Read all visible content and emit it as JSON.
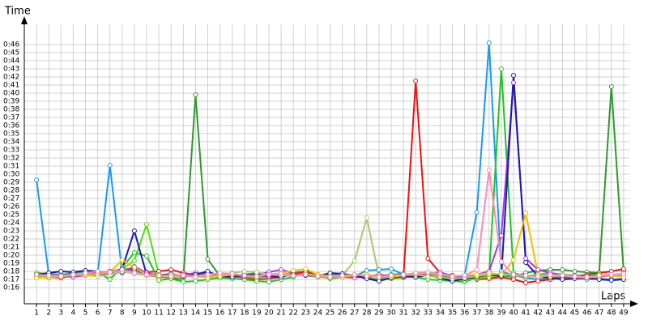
{
  "chart_data": {
    "type": "line",
    "y_label": "Time",
    "x_label": "Laps",
    "grid": true,
    "x": [
      1,
      2,
      3,
      4,
      5,
      6,
      7,
      8,
      9,
      10,
      11,
      12,
      13,
      14,
      15,
      16,
      17,
      18,
      19,
      20,
      21,
      22,
      23,
      24,
      25,
      26,
      27,
      28,
      29,
      30,
      31,
      32,
      33,
      34,
      35,
      36,
      37,
      38,
      39,
      40,
      41,
      42,
      43,
      44,
      45,
      46,
      47,
      48,
      49
    ],
    "xlim": [
      0,
      50
    ],
    "xticks": [
      1,
      2,
      3,
      4,
      5,
      6,
      7,
      8,
      9,
      10,
      11,
      12,
      13,
      14,
      15,
      16,
      17,
      18,
      19,
      20,
      21,
      22,
      23,
      24,
      25,
      26,
      27,
      28,
      29,
      30,
      31,
      32,
      33,
      34,
      35,
      36,
      37,
      38,
      39,
      40,
      41,
      42,
      43,
      44,
      45,
      46,
      47,
      48,
      49
    ],
    "ylim": [
      14,
      48.5
    ],
    "yticks": [
      {
        "value": 16,
        "label": "0:16"
      },
      {
        "value": 17,
        "label": "0:17"
      },
      {
        "value": 18,
        "label": "0:18"
      },
      {
        "value": 19,
        "label": "0:19"
      },
      {
        "value": 20,
        "label": "0:20"
      },
      {
        "value": 21,
        "label": "0:21"
      },
      {
        "value": 22,
        "label": "0:22"
      },
      {
        "value": 23,
        "label": "0:23"
      },
      {
        "value": 24,
        "label": "0:24"
      },
      {
        "value": 25,
        "label": "0:25"
      },
      {
        "value": 26,
        "label": "0:26"
      },
      {
        "value": 27,
        "label": "0:27"
      },
      {
        "value": 28,
        "label": "0:28"
      },
      {
        "value": 29,
        "label": "0:29"
      },
      {
        "value": 30,
        "label": "0:30"
      },
      {
        "value": 31,
        "label": "0:31"
      },
      {
        "value": 32,
        "label": "0:32"
      },
      {
        "value": 33,
        "label": "0:33"
      },
      {
        "value": 34,
        "label": "0:34"
      },
      {
        "value": 35,
        "label": "0:35"
      },
      {
        "value": 36,
        "label": "0:36"
      },
      {
        "value": 37,
        "label": "0:37"
      },
      {
        "value": 38,
        "label": "0:38"
      },
      {
        "value": 39,
        "label": "0:39"
      },
      {
        "value": 40,
        "label": "0:40"
      },
      {
        "value": 41,
        "label": "0:41"
      },
      {
        "value": 42,
        "label": "0:42"
      },
      {
        "value": 43,
        "label": "0:43"
      },
      {
        "value": 44,
        "label": "0:44"
      },
      {
        "value": 45,
        "label": "0:45"
      },
      {
        "value": 46,
        "label": "0:46"
      }
    ],
    "series": [
      {
        "color": "#1a9be8",
        "values": [
          29.3,
          17.6,
          17.5,
          17.8,
          17.9,
          17.7,
          31.1,
          17.8,
          18.1,
          17.6,
          17.4,
          17.5,
          17.3,
          17.6,
          17.7,
          17.5,
          17.4,
          17.6,
          17.5,
          17.4,
          17.6,
          17.8,
          17.5,
          17.4,
          17.6,
          17.5,
          17.4,
          18.1,
          18.2,
          18.3,
          17.6,
          17.5,
          17.6,
          17.4,
          17.3,
          17.5,
          25.3,
          46.2,
          18.0,
          17.5,
          17.2,
          17.0,
          17.2,
          17.3,
          17.2,
          17.0,
          17.1,
          17.0,
          17.1
        ]
      },
      {
        "color": "#2e9a2e",
        "values": [
          17.7,
          17.6,
          17.5,
          17.7,
          17.6,
          17.8,
          17.9,
          18.2,
          18.4,
          17.5,
          17.3,
          17.2,
          17.0,
          39.8,
          19.5,
          17.4,
          17.5,
          17.6,
          17.8,
          17.6,
          17.5,
          17.8,
          17.9,
          17.6,
          17.5,
          17.4,
          17.6,
          17.3,
          17.4,
          17.6,
          17.7,
          17.5,
          17.8,
          17.6,
          17.0,
          17.2,
          17.4,
          17.6,
          17.5,
          17.3,
          17.8,
          18.1,
          18.2,
          18.2,
          18.0,
          17.9,
          17.8,
          40.8,
          18.0
        ]
      },
      {
        "color": "#ee1111",
        "values": [
          17.4,
          17.3,
          17.2,
          17.5,
          17.6,
          17.8,
          18.0,
          18.1,
          18.3,
          17.9,
          18.0,
          18.2,
          17.8,
          17.6,
          17.9,
          17.5,
          17.4,
          17.2,
          17.0,
          17.1,
          17.3,
          17.8,
          18.0,
          17.6,
          17.3,
          17.5,
          17.4,
          17.2,
          17.0,
          17.1,
          17.3,
          41.5,
          19.6,
          17.8,
          17.5,
          17.2,
          17.0,
          17.1,
          17.3,
          17.0,
          16.6,
          16.8,
          17.0,
          17.2,
          17.4,
          17.6,
          17.8,
          18.0,
          18.3
        ]
      },
      {
        "color": "#22c422",
        "values": [
          17.8,
          17.7,
          17.6,
          17.8,
          18.1,
          17.9,
          17.0,
          18.5,
          20.3,
          19.9,
          16.9,
          17.1,
          16.7,
          16.8,
          17.0,
          17.2,
          17.1,
          17.0,
          16.8,
          16.7,
          17.0,
          17.3,
          17.8,
          17.4,
          17.1,
          17.3,
          17.5,
          17.2,
          17.0,
          17.4,
          17.6,
          17.3,
          17.0,
          16.9,
          16.8,
          16.7,
          17.2,
          17.5,
          43.0,
          17.8,
          17.4,
          17.6,
          17.8,
          17.4,
          17.3,
          17.5,
          17.6,
          17.4,
          17.7
        ]
      },
      {
        "color": "#55dd11",
        "values": [
          17.3,
          17.2,
          17.4,
          17.5,
          17.6,
          17.7,
          17.8,
          18.3,
          19.3,
          23.8,
          17.6,
          17.4,
          17.3,
          17.5,
          17.8,
          17.6,
          17.4,
          17.3,
          17.2,
          17.4,
          17.6,
          17.8,
          17.5,
          17.3,
          17.2,
          17.4,
          17.6,
          17.5,
          17.3,
          17.1,
          17.2,
          17.4,
          17.6,
          17.3,
          17.0,
          16.9,
          17.1,
          17.3,
          17.5,
          17.6,
          17.4,
          17.5,
          17.7,
          17.6,
          17.5,
          17.3,
          17.4,
          17.6,
          17.5
        ]
      },
      {
        "color": "#aa33ee",
        "values": [
          17.5,
          17.6,
          17.4,
          17.3,
          17.5,
          17.6,
          17.7,
          17.9,
          18.6,
          17.8,
          17.5,
          17.4,
          17.6,
          17.8,
          17.7,
          17.5,
          17.3,
          17.4,
          17.6,
          17.9,
          18.2,
          17.8,
          17.6,
          17.4,
          17.5,
          17.3,
          17.2,
          17.4,
          17.6,
          17.4,
          17.3,
          17.5,
          17.7,
          17.9,
          17.4,
          17.2,
          17.6,
          18.0,
          22.4,
          41.3,
          19.6,
          18.2,
          17.8,
          17.6,
          17.5,
          17.4,
          17.3,
          17.5,
          17.6
        ]
      },
      {
        "color": "#1a1aaa",
        "values": [
          17.6,
          17.8,
          18.0,
          17.9,
          18.1,
          18.0,
          17.9,
          18.3,
          23.0,
          17.6,
          17.5,
          17.7,
          17.4,
          17.6,
          18.0,
          17.4,
          17.3,
          17.6,
          17.5,
          17.4,
          17.3,
          17.6,
          17.5,
          17.4,
          17.8,
          17.7,
          17.5,
          17.1,
          16.8,
          17.2,
          17.4,
          17.3,
          17.5,
          17.2,
          16.8,
          17.1,
          17.3,
          17.6,
          17.4,
          42.2,
          19.1,
          17.4,
          17.2,
          17.0,
          17.1,
          17.2,
          17.0,
          16.9,
          17.0
        ]
      },
      {
        "color": "#a8c870",
        "values": [
          17.5,
          17.4,
          17.3,
          17.6,
          17.5,
          17.4,
          17.6,
          18.0,
          17.7,
          17.5,
          17.4,
          17.6,
          17.5,
          17.4,
          17.3,
          17.6,
          17.8,
          18.0,
          17.9,
          17.6,
          17.5,
          17.4,
          17.6,
          17.5,
          17.4,
          17.5,
          19.3,
          24.6,
          17.4,
          17.3,
          17.5,
          17.6,
          17.4,
          17.3,
          17.1,
          17.2,
          17.4,
          17.6,
          17.7,
          17.5,
          17.4,
          17.3,
          17.5,
          17.6,
          17.4,
          17.3,
          17.5,
          17.6,
          17.4
        ]
      },
      {
        "color": "#f0c000",
        "values": [
          17.2,
          17.3,
          17.4,
          17.5,
          17.6,
          17.7,
          17.9,
          19.4,
          18.5,
          17.6,
          17.4,
          17.3,
          17.5,
          17.4,
          17.2,
          17.4,
          17.6,
          17.5,
          17.4,
          17.6,
          17.8,
          18.1,
          18.3,
          17.6,
          17.4,
          17.3,
          17.5,
          17.6,
          17.4,
          17.3,
          17.5,
          17.7,
          17.8,
          17.6,
          17.4,
          17.5,
          17.6,
          17.8,
          17.6,
          19.4,
          25.2,
          17.6,
          17.4,
          17.5,
          17.3,
          17.2,
          17.4,
          17.5,
          17.3
        ]
      },
      {
        "color": "#ff88bb",
        "values": [
          17.6,
          17.5,
          17.4,
          17.6,
          17.8,
          18.0,
          17.9,
          18.2,
          17.8,
          17.6,
          17.5,
          17.4,
          17.5,
          17.3,
          17.6,
          17.8,
          17.7,
          17.5,
          17.4,
          17.6,
          17.7,
          17.5,
          17.6,
          17.4,
          17.3,
          17.5,
          17.6,
          17.4,
          17.3,
          17.5,
          17.6,
          17.8,
          17.9,
          17.7,
          17.4,
          17.5,
          18.2,
          30.5,
          19.2,
          17.6,
          17.5,
          17.4,
          17.6,
          17.5,
          17.4,
          17.3,
          17.5,
          17.6,
          17.7
        ]
      }
    ]
  }
}
